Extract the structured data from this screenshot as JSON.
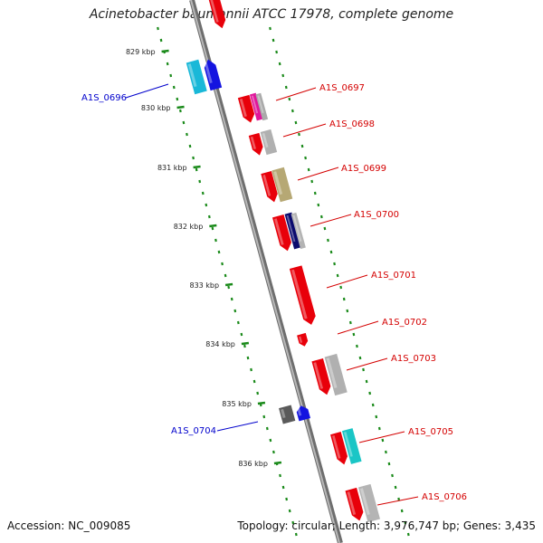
{
  "title": "Acinetobacter baumannii ATCC 17978, complete genome",
  "accession": "Accession: NC_009085",
  "topology": "Topology: circular; Length: 3,976,747 bp; Genes: 3,435",
  "colors": {
    "backbone": "#8a8a8a",
    "tick": "#1a8a1a",
    "forward_label": "#d40000",
    "reverse_label": "#0000cc"
  },
  "kbp_labels": [
    "829 kbp",
    "830 kbp",
    "831 kbp",
    "832 kbp",
    "833 kbp",
    "834 kbp",
    "835 kbp",
    "836 kbp"
  ],
  "gene_labels": [
    {
      "text": "A1S_0696",
      "strand": "reverse"
    },
    {
      "text": "A1S_0697",
      "strand": "forward"
    },
    {
      "text": "A1S_0698",
      "strand": "forward"
    },
    {
      "text": "A1S_0699",
      "strand": "forward"
    },
    {
      "text": "A1S_0700",
      "strand": "forward"
    },
    {
      "text": "A1S_0701",
      "strand": "forward"
    },
    {
      "text": "A1S_0702",
      "strand": "forward"
    },
    {
      "text": "A1S_0703",
      "strand": "forward"
    },
    {
      "text": "A1S_0704",
      "strand": "reverse"
    },
    {
      "text": "A1S_0705",
      "strand": "forward"
    },
    {
      "text": "A1S_0706",
      "strand": "forward"
    }
  ]
}
